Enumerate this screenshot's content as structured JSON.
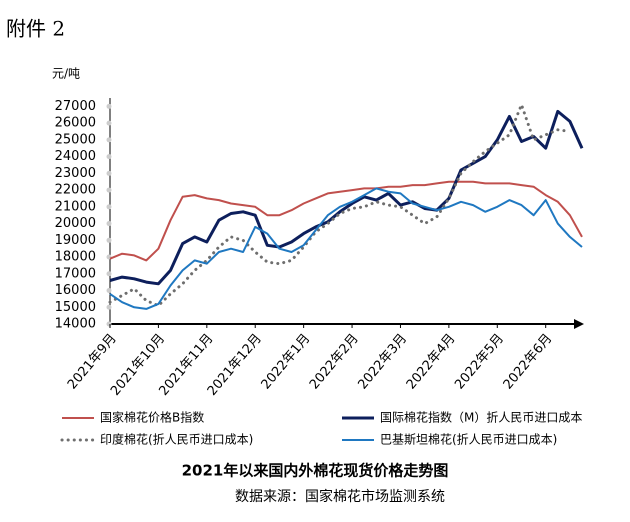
{
  "header": "附件 2",
  "chart_data": {
    "type": "line",
    "title": "2021年以来国内外棉花现货价格走势图",
    "source": "数据来源：国家棉花市场监测系统",
    "y_label": "元/吨",
    "categories": [
      "2021年9月",
      null,
      null,
      null,
      "2021年10月",
      null,
      null,
      null,
      "2021年11月",
      null,
      null,
      null,
      "2021年12月",
      null,
      null,
      null,
      "2022年1月",
      null,
      null,
      null,
      "2022年2月",
      null,
      null,
      null,
      "2022年3月",
      null,
      null,
      null,
      "2022年4月",
      null,
      null,
      null,
      "2022年5月",
      null,
      null,
      null,
      "2022年6月",
      null,
      null,
      null
    ],
    "ylim": [
      14000,
      27500
    ],
    "yticks": [
      14000,
      15000,
      16000,
      17000,
      18000,
      19000,
      20000,
      21000,
      22000,
      23000,
      24000,
      25000,
      26000,
      27000
    ],
    "series": [
      {
        "name": "国家棉花价格B指数",
        "color": "#c0504d",
        "style": "solid",
        "values": [
          17900,
          18200,
          18100,
          17800,
          18500,
          20200,
          21600,
          21700,
          21500,
          21400,
          21200,
          21100,
          21000,
          20500,
          20500,
          20800,
          21200,
          21500,
          21800,
          21900,
          22000,
          22100,
          22100,
          22200,
          22200,
          22300,
          22300,
          22400,
          22500,
          22500,
          22500,
          22400,
          22400,
          22400,
          22300,
          22200,
          21700,
          21300,
          20500,
          19200
        ]
      },
      {
        "name": "国际棉花指数（M）折人民币进口成本",
        "color": "#0d1f5c",
        "style": "solid",
        "values": [
          16600,
          16800,
          16700,
          16500,
          16400,
          17200,
          18800,
          19200,
          18900,
          20200,
          20600,
          20700,
          20500,
          18700,
          18600,
          18900,
          19400,
          19800,
          20100,
          20700,
          21200,
          21600,
          21400,
          21800,
          21100,
          21300,
          20900,
          20800,
          21500,
          23200,
          23600,
          24000,
          25000,
          26400,
          24900,
          25200,
          24500,
          26700,
          26100,
          24500
        ]
      },
      {
        "name": "印度棉花(折人民币进口成本)",
        "color": "#6e6e6e",
        "style": "dotted",
        "values": [
          15300,
          15700,
          16100,
          15400,
          15100,
          15800,
          16400,
          17200,
          17800,
          18600,
          19200,
          19000,
          18300,
          17700,
          17600,
          17800,
          18600,
          19500,
          20000,
          20600,
          20900,
          21000,
          21300,
          21100,
          21000,
          20500,
          20000,
          20400,
          21500,
          23000,
          23700,
          24300,
          24800,
          25300,
          27100,
          25000,
          25300,
          25600,
          25500,
          null
        ]
      },
      {
        "name": "巴基斯坦棉花(折人民币进口成本)",
        "color": "#1f78c1",
        "style": "solid",
        "values": [
          15800,
          15300,
          15000,
          14900,
          15200,
          16300,
          17200,
          17800,
          17600,
          18300,
          18500,
          18300,
          19800,
          19400,
          18500,
          18300,
          18700,
          19600,
          20500,
          21000,
          21300,
          21700,
          22100,
          21900,
          21800,
          21200,
          21000,
          20800,
          21000,
          21300,
          21100,
          20700,
          21000,
          21400,
          21100,
          20500,
          21400,
          20000,
          19200,
          18600
        ]
      }
    ]
  }
}
